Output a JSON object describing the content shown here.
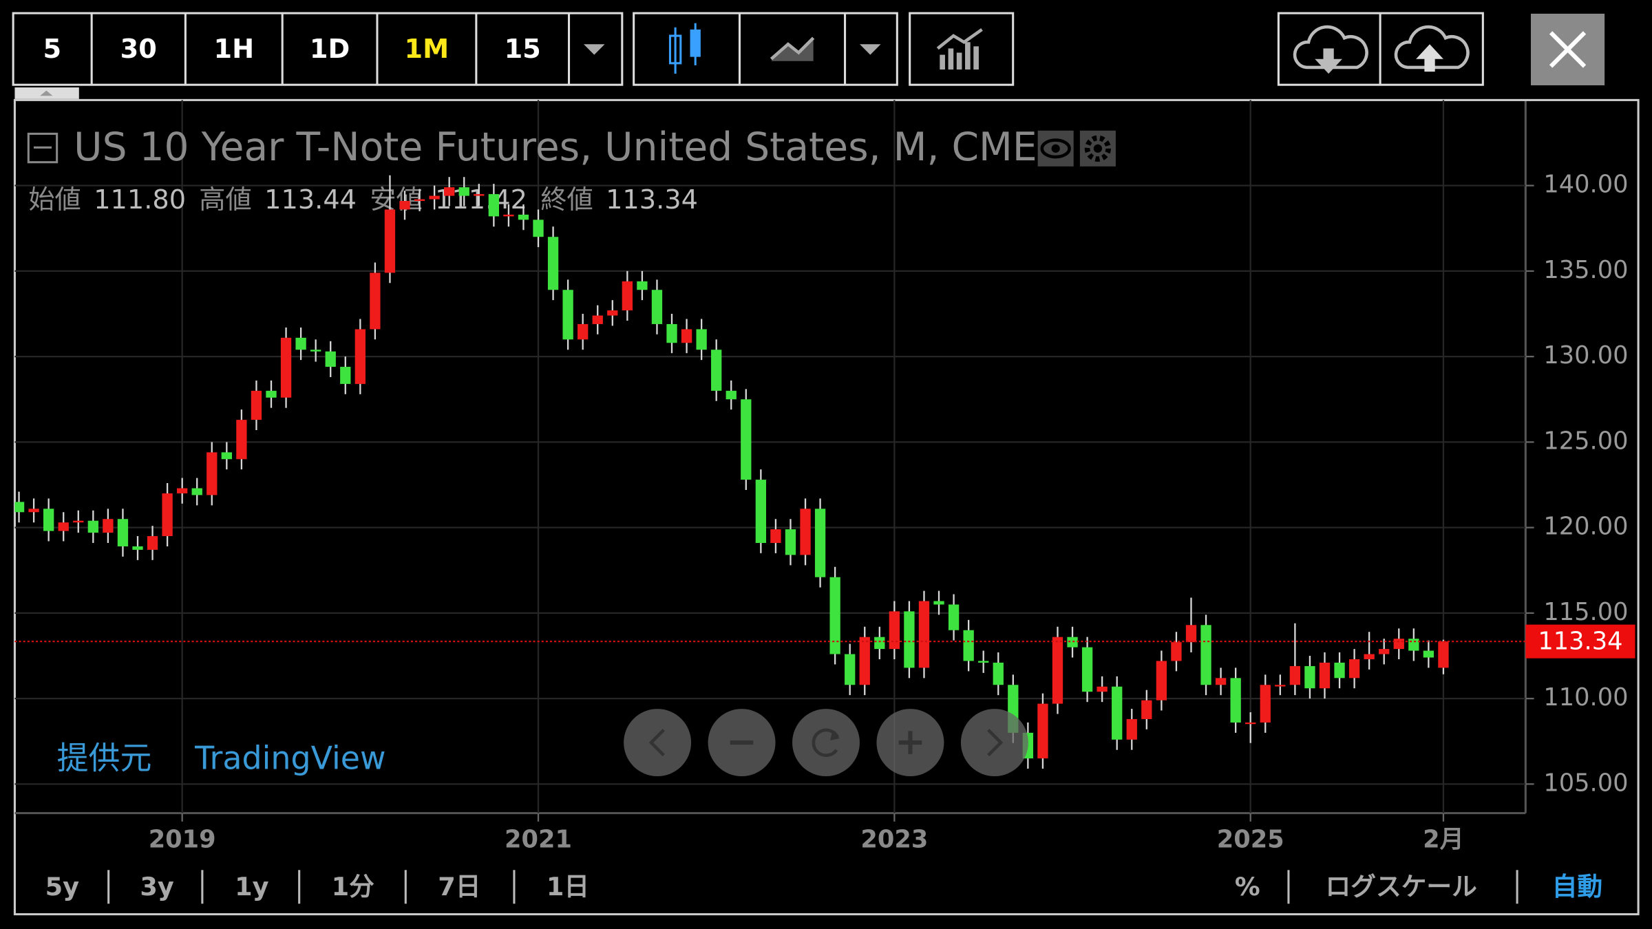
{
  "toolbar": {
    "intervals": [
      "5",
      "30",
      "1H",
      "1D",
      "1M",
      "15"
    ],
    "active_interval": 4
  },
  "chart_data": {
    "type": "candlestick",
    "title": "US 10 Year T-Note Futures, United States, M, CME",
    "legend": [
      "始値",
      "高値",
      "安値",
      "終値"
    ],
    "value_labels": [
      "111.80",
      "113.44",
      "111.42",
      "113.34"
    ],
    "x": [
      "2018-02",
      "2018-03",
      "2018-04",
      "2018-05",
      "2018-06",
      "2018-07",
      "2018-08",
      "2018-09",
      "2018-10",
      "2018-11",
      "2018-12",
      "2019-01",
      "2019-02",
      "2019-03",
      "2019-04",
      "2019-05",
      "2019-06",
      "2019-07",
      "2019-08",
      "2019-09",
      "2019-10",
      "2019-11",
      "2019-12",
      "2020-01",
      "2020-02",
      "2020-03",
      "2020-04",
      "2020-05",
      "2020-06",
      "2020-07",
      "2020-08",
      "2020-09",
      "2020-10",
      "2020-11",
      "2020-12",
      "2021-01",
      "2021-02",
      "2021-03",
      "2021-04",
      "2021-05",
      "2021-06",
      "2021-07",
      "2021-08",
      "2021-09",
      "2021-10",
      "2021-11",
      "2021-12",
      "2022-01",
      "2022-02",
      "2022-03",
      "2022-04",
      "2022-05",
      "2022-06",
      "2022-07",
      "2022-08",
      "2022-09",
      "2022-10",
      "2022-11",
      "2022-12",
      "2023-01",
      "2023-02",
      "2023-03",
      "2023-04",
      "2023-05",
      "2023-06",
      "2023-07",
      "2023-08",
      "2023-09",
      "2023-10",
      "2023-11",
      "2023-12",
      "2024-01",
      "2024-02",
      "2024-03",
      "2024-04",
      "2024-05",
      "2024-06",
      "2024-07",
      "2024-08",
      "2024-09",
      "2024-10",
      "2024-11",
      "2024-12",
      "2025-01",
      "2025-02",
      "2025-03",
      "2025-04",
      "2025-05",
      "2025-06",
      "2025-07",
      "2025-08",
      "2025-09",
      "2025-10",
      "2025-11",
      "2025-12",
      "2026-01",
      "2026-02"
    ],
    "open": [
      121.5,
      120.9,
      121.1,
      119.8,
      120.3,
      120.4,
      119.7,
      120.5,
      118.9,
      118.7,
      119.5,
      122.0,
      122.3,
      121.9,
      124.4,
      124.0,
      126.3,
      128.0,
      127.6,
      131.1,
      130.4,
      130.3,
      129.4,
      128.4,
      131.6,
      134.9,
      138.6,
      139.1,
      139.2,
      139.4,
      139.9,
      139.4,
      139.5,
      138.2,
      138.3,
      138.0,
      137.0,
      133.9,
      131.0,
      131.9,
      132.4,
      132.7,
      134.4,
      133.9,
      131.9,
      130.8,
      131.6,
      130.4,
      128.0,
      127.5,
      122.8,
      119.1,
      119.9,
      118.4,
      121.1,
      117.1,
      112.6,
      110.8,
      113.6,
      112.9,
      115.1,
      111.8,
      115.7,
      115.5,
      114.0,
      112.2,
      112.1,
      110.8,
      108.0,
      106.5,
      109.7,
      113.6,
      113.0,
      110.4,
      110.7,
      107.6,
      108.8,
      109.9,
      112.2,
      113.3,
      114.3,
      110.8,
      111.2,
      108.6,
      108.6,
      110.8,
      110.8,
      111.9,
      110.6,
      112.1,
      111.2,
      112.3,
      112.6,
      112.9,
      113.5,
      112.8,
      111.8
    ],
    "high": [
      122.1,
      121.7,
      121.7,
      120.9,
      121.0,
      121.0,
      121.1,
      121.1,
      119.5,
      120.1,
      122.6,
      122.9,
      122.9,
      125.0,
      125.0,
      126.9,
      128.6,
      128.6,
      131.7,
      131.7,
      131.0,
      130.9,
      130.0,
      132.2,
      135.5,
      140.6,
      139.7,
      139.8,
      140.0,
      140.5,
      140.5,
      140.1,
      140.1,
      138.9,
      138.9,
      138.6,
      137.6,
      134.5,
      132.5,
      133.0,
      133.3,
      135.0,
      135.0,
      134.5,
      132.5,
      132.2,
      132.2,
      131.0,
      128.6,
      128.1,
      123.4,
      120.5,
      120.5,
      121.7,
      121.7,
      117.7,
      113.2,
      114.2,
      114.2,
      115.7,
      115.7,
      116.3,
      116.3,
      116.1,
      114.6,
      112.8,
      112.7,
      111.4,
      108.6,
      110.3,
      114.2,
      114.2,
      113.6,
      111.3,
      111.3,
      109.4,
      110.5,
      112.8,
      113.9,
      115.9,
      114.9,
      111.8,
      111.8,
      109.2,
      111.4,
      111.4,
      114.4,
      112.5,
      112.7,
      112.7,
      112.9,
      113.9,
      113.5,
      114.1,
      114.1,
      113.4,
      113.44
    ],
    "low": [
      120.3,
      120.3,
      119.2,
      119.2,
      119.7,
      119.1,
      119.1,
      118.3,
      118.1,
      118.1,
      118.9,
      121.4,
      121.3,
      121.3,
      123.4,
      123.4,
      125.7,
      127.0,
      127.0,
      129.8,
      129.7,
      128.8,
      127.8,
      127.8,
      131.0,
      134.3,
      138.0,
      138.5,
      138.6,
      138.8,
      138.8,
      138.8,
      137.6,
      137.6,
      137.4,
      136.4,
      133.3,
      130.4,
      130.4,
      131.3,
      131.8,
      132.1,
      133.3,
      131.3,
      130.2,
      130.2,
      129.8,
      127.4,
      126.9,
      122.2,
      118.5,
      118.5,
      117.8,
      117.8,
      116.5,
      112.0,
      110.2,
      110.2,
      112.3,
      112.3,
      111.2,
      111.2,
      114.9,
      113.4,
      111.6,
      111.5,
      110.2,
      107.4,
      105.9,
      105.9,
      109.1,
      112.4,
      109.8,
      109.8,
      107.0,
      107.0,
      108.2,
      109.3,
      111.6,
      112.7,
      110.2,
      110.2,
      108.0,
      107.4,
      108.0,
      110.2,
      110.2,
      110.0,
      110.0,
      110.6,
      110.6,
      111.7,
      112.0,
      112.3,
      112.2,
      111.8,
      111.42
    ],
    "close": [
      120.9,
      121.1,
      119.8,
      120.3,
      120.4,
      119.7,
      120.5,
      118.9,
      118.7,
      119.5,
      122.0,
      122.3,
      121.9,
      124.4,
      124.0,
      126.3,
      128.0,
      127.6,
      131.1,
      130.4,
      130.3,
      129.4,
      128.4,
      131.6,
      134.9,
      138.6,
      139.1,
      139.2,
      139.4,
      139.9,
      139.4,
      139.5,
      138.2,
      138.3,
      138.0,
      137.0,
      133.9,
      131.0,
      131.9,
      132.4,
      132.7,
      134.4,
      133.9,
      131.9,
      130.8,
      131.6,
      130.4,
      128.0,
      127.5,
      122.8,
      119.1,
      119.9,
      118.4,
      121.1,
      117.1,
      112.6,
      110.8,
      113.6,
      112.9,
      115.1,
      111.8,
      115.7,
      115.5,
      114.0,
      112.2,
      112.1,
      110.8,
      108.0,
      106.5,
      109.7,
      113.6,
      113.0,
      110.4,
      110.7,
      107.6,
      108.8,
      109.9,
      112.2,
      113.3,
      114.3,
      110.8,
      111.2,
      108.6,
      108.6,
      110.8,
      110.8,
      111.9,
      110.6,
      112.1,
      111.2,
      112.3,
      112.6,
      112.9,
      113.5,
      112.8,
      112.4,
      113.34
    ],
    "up_color": "#f01c1c",
    "down_color": "#3fe33f",
    "wick_color": "#d8d8d8",
    "ylim": [
      103.3,
      145.0
    ],
    "yticks": [
      {
        "value": 105,
        "label": "105.00"
      },
      {
        "value": 110,
        "label": "110.00"
      },
      {
        "value": 115,
        "label": "115.00"
      },
      {
        "value": 120,
        "label": "120.00"
      },
      {
        "value": 125,
        "label": "125.00"
      },
      {
        "value": 130,
        "label": "130.00"
      },
      {
        "value": 135,
        "label": "135.00"
      },
      {
        "value": 140,
        "label": "140.00"
      }
    ],
    "xticks": [
      {
        "value": "2019-01",
        "label": "2019"
      },
      {
        "value": "2021-01",
        "label": "2021"
      },
      {
        "value": "2023-01",
        "label": "2023"
      },
      {
        "value": "2025-01",
        "label": "2025"
      },
      {
        "value": "2026-02",
        "label": "2月"
      }
    ],
    "grid": true,
    "last_price_line": true,
    "source_label": "提供元",
    "source": "TradingView"
  },
  "range_buttons": [
    "5y",
    "3y",
    "1y",
    "1分",
    "7日",
    "1日"
  ],
  "scale_options": [
    "%",
    "ログスケール",
    "自動"
  ],
  "active_scale": 2
}
